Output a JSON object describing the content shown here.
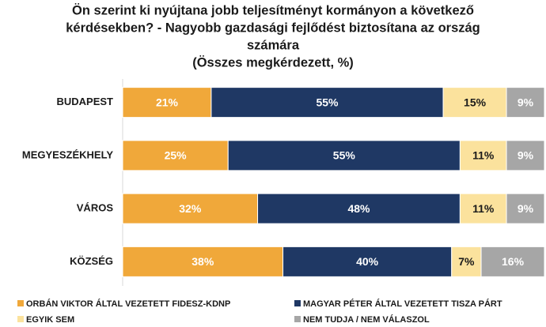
{
  "chart_data": {
    "type": "stacked-bar-horizontal",
    "title": [
      "Ön szerint ki nyújtana jobb teljesítményt kormányon a következő",
      "kérdésekben? - Nagyobb gazdasági fejlődést biztosítana az ország",
      "számára"
    ],
    "subtitle": "(Összes megkérdezett, %)",
    "categories": [
      "BUDAPEST",
      "MEGYESZÉKHELY",
      "VÁROS",
      "KÖZSÉG"
    ],
    "xlim": [
      0,
      100
    ],
    "series": [
      {
        "name": "ORBÁN VIKTOR ÁLTAL VEZETETT FIDESZ-KDNP",
        "color": "#f0a83a",
        "label_color": "#ffffff",
        "values": [
          21,
          25,
          32,
          38
        ],
        "value_labels": [
          "21%",
          "25%",
          "32%",
          "38%"
        ]
      },
      {
        "name": "MAGYAR PÉTER ÁLTAL VEZETETT TISZA PÁRT",
        "color": "#1f3864",
        "label_color": "#ffffff",
        "values": [
          55,
          55,
          48,
          40
        ],
        "value_labels": [
          "55%",
          "55%",
          "48%",
          "40%"
        ]
      },
      {
        "name": "EGYIK SEM",
        "color": "#fbe29d",
        "label_color": "#1a1a1a",
        "values": [
          15,
          11,
          11,
          7
        ],
        "value_labels": [
          "15%",
          "11%",
          "11%",
          "7%"
        ]
      },
      {
        "name": "NEM TUDJA / NEM VÁLASZOL",
        "color": "#a6a6a6",
        "label_color": "#ffffff",
        "values": [
          9,
          9,
          9,
          16
        ],
        "value_labels": [
          "9%",
          "9%",
          "9%",
          "16%"
        ]
      }
    ]
  }
}
